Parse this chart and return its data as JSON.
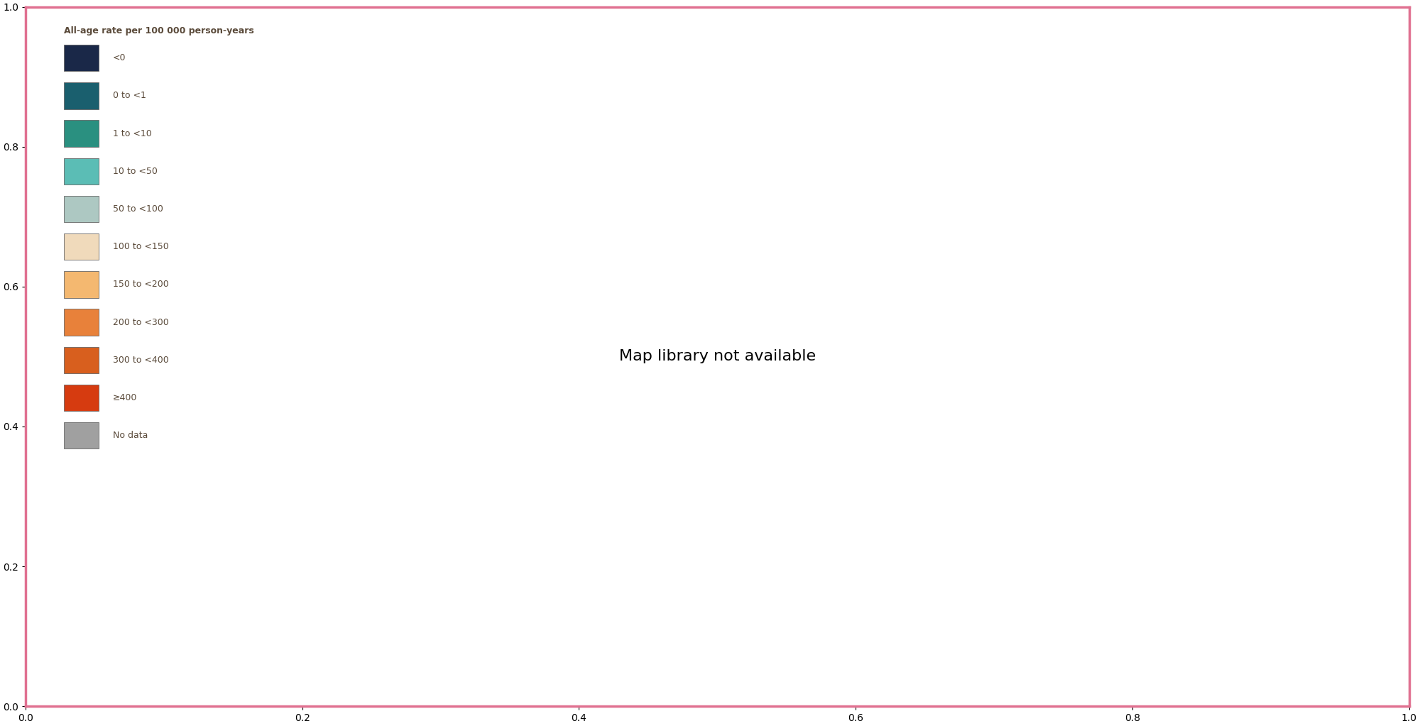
{
  "legend_title": "All-age rate per 100 000 person-years",
  "categories": [
    {
      "label": "<0",
      "color": "#1a2848"
    },
    {
      "label": "0 to <1",
      "color": "#1a5f6e"
    },
    {
      "label": "1 to <10",
      "color": "#2a9080"
    },
    {
      "label": "10 to <50",
      "color": "#5bbdb5"
    },
    {
      "label": "50 to <100",
      "color": "#adc8c2"
    },
    {
      "label": "100 to <150",
      "color": "#f0dabb"
    },
    {
      "label": "150 to <200",
      "color": "#f4b870"
    },
    {
      "label": "200 to <300",
      "color": "#e8813a"
    },
    {
      "label": "300 to <400",
      "color": "#d85f1e"
    },
    {
      "label": "≥400",
      "color": "#d63b10"
    },
    {
      "label": "No data",
      "color": "#a0a0a0"
    }
  ],
  "country_colors": {
    "Australia": "#1a2848",
    "New Zealand": "#adc8c2",
    "Japan": "#1a5f6e",
    "South Korea": "#1a5f6e",
    "China": "#1a5f6e",
    "Mongolia": "#f0dabb",
    "North Korea": "#a0a0a0",
    "Russia": "#e8813a",
    "Kazakhstan": "#f4b870",
    "Uzbekistan": "#e8813a",
    "Turkmenistan": "#a0a0a0",
    "Kyrgyzstan": "#e8813a",
    "Tajikistan": "#d85f1e",
    "Afghanistan": "#a0a0a0",
    "Pakistan": "#e8813a",
    "India": "#e8813a",
    "Nepal": "#f4b870",
    "Bhutan": "#a0a0a0",
    "Bangladesh": "#d85f1e",
    "Sri Lanka": "#f4b870",
    "Myanmar": "#f4b870",
    "Thailand": "#f0dabb",
    "Laos": "#a0a0a0",
    "Vietnam": "#2a9080",
    "Cambodia": "#f4b870",
    "Malaysia": "#f0dabb",
    "Singapore": "#1a5f6e",
    "Indonesia": "#e8813a",
    "Philippines": "#d85f1e",
    "Papua New Guinea": "#a0a0a0",
    "Timor-Leste": "#a0a0a0",
    "Iran": "#e8813a",
    "Iraq": "#d63b10",
    "Turkey": "#d63b10",
    "Syria": "#d63b10",
    "Lebanon": "#d63b10",
    "Israel": "#2a9080",
    "Jordan": "#e8813a",
    "Saudi Arabia": "#f4b870",
    "Yemen": "#a0a0a0",
    "Oman": "#f0dabb",
    "United Arab Emirates": "#f0dabb",
    "Qatar": "#f0dabb",
    "Kuwait": "#d63b10",
    "Bahrain": "#d63b10",
    "Azerbaijan": "#d63b10",
    "Armenia": "#d63b10",
    "Georgia": "#d63b10",
    "Ukraine": "#d63b10",
    "Belarus": "#d63b10",
    "Moldova": "#d63b10",
    "Romania": "#d63b10",
    "Bulgaria": "#d63b10",
    "Serbia": "#d63b10",
    "Bosnia and Herzegovina": "#d85f1e",
    "Croatia": "#d85f1e",
    "Slovenia": "#f4b870",
    "Hungary": "#d63b10",
    "Slovakia": "#d63b10",
    "Czechia": "#e8813a",
    "Poland": "#e8813a",
    "Lithuania": "#d63b10",
    "Latvia": "#d63b10",
    "Estonia": "#f4b870",
    "Finland": "#5bbdb5",
    "Sweden": "#5bbdb5",
    "Norway": "#5bbdb5",
    "Denmark": "#5bbdb5",
    "United Kingdom": "#f4b870",
    "Ireland": "#adc8c2",
    "France": "#f4b870",
    "Belgium": "#e8813a",
    "Netherlands": "#f4b870",
    "Germany": "#e8813a",
    "Switzerland": "#adc8c2",
    "Austria": "#f4b870",
    "Italy": "#e8813a",
    "Spain": "#e8813a",
    "Portugal": "#e8813a",
    "Greece": "#d85f1e",
    "Albania": "#d85f1e",
    "North Macedonia": "#d63b10",
    "Kosovo": "#d63b10",
    "Montenegro": "#d63b10",
    "Cyprus": "#d85f1e",
    "Malta": "#f4b870",
    "Luxembourg": "#f4b870",
    "Iceland": "#1a5f6e",
    "Egypt": "#f4b870",
    "Libya": "#5bbdb5",
    "Tunisia": "#f0dabb",
    "Algeria": "#f0dabb",
    "Morocco": "#f4b870",
    "Sudan": "#e8813a",
    "South Sudan": "#a0a0a0",
    "Ethiopia": "#e8813a",
    "Eritrea": "#a0a0a0",
    "Djibouti": "#d63b10",
    "Somalia": "#a0a0a0",
    "Kenya": "#e8813a",
    "Tanzania": "#e8813a",
    "Uganda": "#e8813a",
    "Rwanda": "#d85f1e",
    "Burundi": "#d63b10",
    "Dem. Rep. Congo": "#e8813a",
    "Congo": "#e8813a",
    "Central African Rep.": "#a0a0a0",
    "Cameroon": "#e8813a",
    "Nigeria": "#e8813a",
    "Niger": "#f0dabb",
    "Mali": "#f0dabb",
    "Burkina Faso": "#e8813a",
    "Ghana": "#e8813a",
    "Ivory Coast": "#e8813a",
    "Guinea": "#e8813a",
    "Senegal": "#f4b870",
    "Gambia": "#d63b10",
    "Guinea-Bissau": "#d63b10",
    "Sierra Leone": "#e8813a",
    "Liberia": "#e8813a",
    "Togo": "#d63b10",
    "Benin": "#e8813a",
    "Chad": "#a0a0a0",
    "Mauritania": "#f0dabb",
    "Gabon": "#2a9080",
    "Eq. Guinea": "#d63b10",
    "São Tomé and Principe": "#d63b10",
    "Angola": "#e8813a",
    "Zambia": "#e8813a",
    "Zimbabwe": "#d63b10",
    "Mozambique": "#e8813a",
    "Malawi": "#d63b10",
    "Madagascar": "#f4b870",
    "Comoros": "#d63b10",
    "Mauritius": "#1a5f6e",
    "Namibia": "#f4b870",
    "Botswana": "#d63b10",
    "South Africa": "#d63b10",
    "Lesotho": "#d63b10",
    "eSwatini": "#d63b10",
    "Canada": "#5bbdb5",
    "United States of America": "#e8813a",
    "Mexico": "#e8813a",
    "Guatemala": "#d63b10",
    "Belize": "#f0dabb",
    "Honduras": "#d63b10",
    "El Salvador": "#d63b10",
    "Nicaragua": "#d63b10",
    "Costa Rica": "#f4b870",
    "Panama": "#d85f1e",
    "Cuba": "#2a9080",
    "Jamaica": "#d63b10",
    "Haiti": "#d63b10",
    "Dominican Rep.": "#d63b10",
    "Trinidad and Tobago": "#d63b10",
    "Barbados": "#d63b10",
    "Colombia": "#d63b10",
    "Venezuela": "#d63b10",
    "Guyana": "#e8813a",
    "Suriname": "#d63b10",
    "Brazil": "#e8813a",
    "Ecuador": "#d63b10",
    "Peru": "#d63b10",
    "Bolivia": "#d63b10",
    "Chile": "#d85f1e",
    "Argentina": "#d85f1e",
    "Uruguay": "#f4b870",
    "Paraguay": "#d85f1e",
    "Greenland": "#5bbdb5",
    "W. Sahara": "#a0a0a0",
    "S. Sudan": "#a0a0a0",
    "Côte d'Ivoire": "#e8813a",
    "Bosnia and Herz.": "#d85f1e",
    "N. Korea": "#a0a0a0",
    "S. Korea": "#1a5f6e",
    "Lao PDR": "#a0a0a0",
    "Solomon Is.": "#a0a0a0",
    "Vanuatu": "#a0a0a0",
    "Fiji": "#a0a0a0",
    "New Caledonia": "#a0a0a0"
  },
  "background_color": "#ffffff",
  "ocean_color": "#ffffff",
  "border_color": "#333333",
  "border_width": 0.35,
  "figure_border_color": "#e07090",
  "legend_label_color": "#5a4a3a",
  "legend_title_color": "#5a4a3a"
}
